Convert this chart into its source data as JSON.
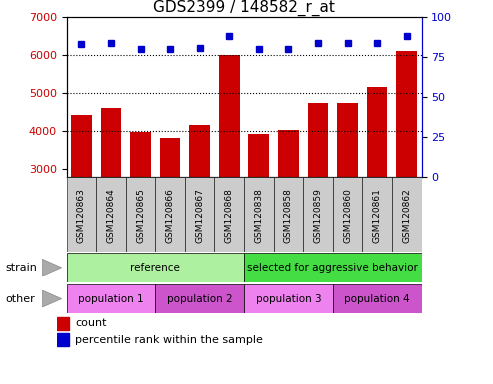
{
  "title": "GDS2399 / 148582_r_at",
  "samples": [
    "GSM120863",
    "GSM120864",
    "GSM120865",
    "GSM120866",
    "GSM120867",
    "GSM120868",
    "GSM120838",
    "GSM120858",
    "GSM120859",
    "GSM120860",
    "GSM120861",
    "GSM120862"
  ],
  "counts": [
    4430,
    4620,
    3980,
    3830,
    4160,
    6000,
    3920,
    4020,
    4750,
    4730,
    5150,
    6100
  ],
  "percentile_ranks": [
    83,
    84,
    80,
    80,
    81,
    88,
    80,
    80,
    84,
    84,
    84,
    88
  ],
  "ylim_left": [
    2800,
    7000
  ],
  "ylim_right": [
    0,
    100
  ],
  "yticks_left": [
    3000,
    4000,
    5000,
    6000,
    7000
  ],
  "yticks_right": [
    0,
    25,
    50,
    75,
    100
  ],
  "bar_color": "#cc0000",
  "dot_color": "#0000cc",
  "bar_bottom": 2800,
  "hgrid_vals": [
    4000,
    5000,
    6000
  ],
  "strain_groups": [
    {
      "label": "reference",
      "start": 0,
      "end": 6,
      "color": "#adf0a0"
    },
    {
      "label": "selected for aggressive behavior",
      "start": 6,
      "end": 12,
      "color": "#44dd44"
    }
  ],
  "other_groups": [
    {
      "label": "population 1",
      "start": 0,
      "end": 3,
      "color": "#ee82ee"
    },
    {
      "label": "population 2",
      "start": 3,
      "end": 6,
      "color": "#cc55cc"
    },
    {
      "label": "population 3",
      "start": 6,
      "end": 9,
      "color": "#ee82ee"
    },
    {
      "label": "population 4",
      "start": 9,
      "end": 12,
      "color": "#cc55cc"
    }
  ],
  "tick_label_bg": "#cccccc",
  "title_fontsize": 11,
  "axis_fontsize": 8,
  "label_fontsize": 8,
  "sample_fontsize": 6.5
}
